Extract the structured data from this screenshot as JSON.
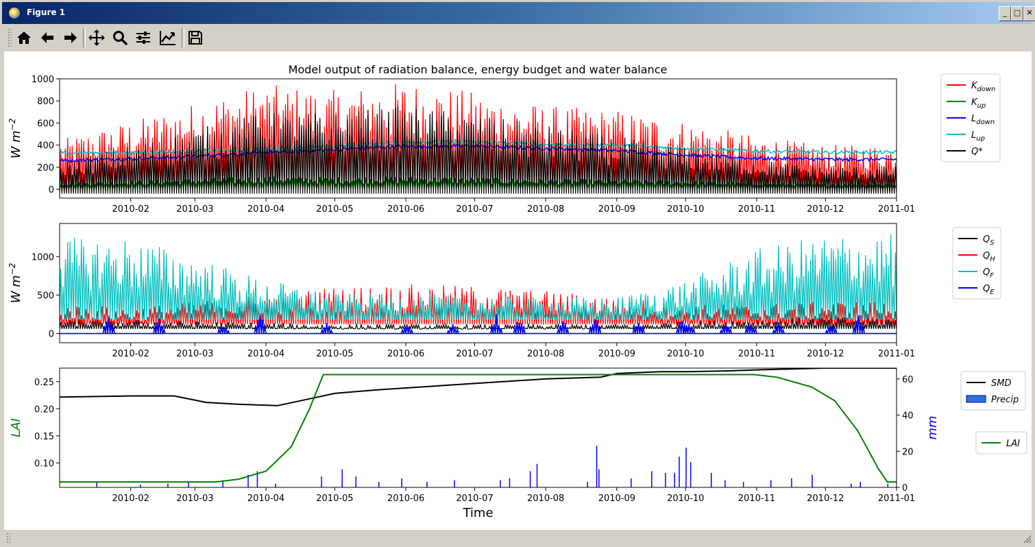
{
  "window": {
    "title": "Figure 1",
    "min_label": "_",
    "max_label": "□",
    "close_label": "✕"
  },
  "toolbar": {
    "buttons": [
      {
        "id": "home",
        "icon": "home-icon"
      },
      {
        "id": "back",
        "icon": "arrow-left-icon"
      },
      {
        "id": "forward",
        "icon": "arrow-right-icon"
      },
      {
        "id": "pan",
        "icon": "move-icon"
      },
      {
        "id": "zoom",
        "icon": "magnifier-icon"
      },
      {
        "id": "subplots",
        "icon": "sliders-icon"
      },
      {
        "id": "axes",
        "icon": "line-chart-icon"
      },
      {
        "id": "save",
        "icon": "floppy-icon"
      }
    ]
  },
  "colors": {
    "red": "#ff0000",
    "green": "#008000",
    "blue": "#0000ff",
    "cyan": "#00bfbf",
    "black": "#000000",
    "precip": "#0000ff",
    "precip_legend": "#2a75d6"
  },
  "chart_data": [
    {
      "type": "line",
      "title": "Model output of radiation balance, energy budget and water balance",
      "ylabel": "W m",
      "ylabel_sup": "−2",
      "ylim": [
        -80,
        1000
      ],
      "yticks": [
        0,
        200,
        400,
        600,
        800,
        1000
      ],
      "xlim": [
        "2010-01-01",
        "2011-01-01"
      ],
      "xticks": [
        "2010-02",
        "2010-03",
        "2010-04",
        "2010-05",
        "2010-06",
        "2010-07",
        "2010-08",
        "2010-09",
        "2010-10",
        "2010-11",
        "2010-12",
        "2011-01"
      ],
      "legend": {
        "placement": "outside-right-top"
      },
      "series": [
        {
          "name": "K",
          "sub": "down",
          "color": "#ff0000",
          "style": "daily-peaks",
          "monthly_peak": [
            450,
            620,
            800,
            950,
            900,
            980,
            880,
            760,
            720,
            620,
            480,
            400
          ],
          "night": 0
        },
        {
          "name": "K",
          "sub": "up",
          "color": "#008000",
          "style": "daily-peaks",
          "monthly_peak": [
            60,
            80,
            100,
            120,
            110,
            120,
            110,
            95,
            90,
            80,
            60,
            50
          ],
          "night": 0
        },
        {
          "name": "L",
          "sub": "down",
          "color": "#0000ff",
          "style": "smooth",
          "monthly_level": [
            260,
            275,
            300,
            330,
            360,
            390,
            390,
            370,
            350,
            310,
            280,
            270
          ]
        },
        {
          "name": "L",
          "sub": "up",
          "color": "#00bfbf",
          "style": "smooth",
          "monthly_level": [
            330,
            330,
            345,
            365,
            390,
            425,
            430,
            405,
            400,
            370,
            345,
            335
          ]
        },
        {
          "name": "Q*",
          "sub": "",
          "color": "#000000",
          "style": "daily-peaks",
          "monthly_peak": [
            250,
            400,
            550,
            700,
            700,
            760,
            680,
            580,
            480,
            380,
            270,
            210
          ],
          "night": -40
        }
      ]
    },
    {
      "type": "line",
      "ylabel": "W m",
      "ylabel_sup": "−2",
      "ylim": [
        -120,
        1430
      ],
      "yticks": [
        0,
        500,
        1000
      ],
      "xlim": [
        "2010-01-01",
        "2011-01-01"
      ],
      "xticks": [
        "2010-02",
        "2010-03",
        "2010-04",
        "2010-05",
        "2010-06",
        "2010-07",
        "2010-08",
        "2010-09",
        "2010-10",
        "2010-11",
        "2010-12",
        "2011-01"
      ],
      "legend": {
        "placement": "outside-right-top"
      },
      "series": [
        {
          "name": "Q",
          "sub": "S",
          "color": "#000000",
          "style": "daily-peaks",
          "monthly_peak": [
            200,
            180,
            160,
            140,
            120,
            120,
            120,
            120,
            130,
            160,
            200,
            220
          ],
          "night": 60
        },
        {
          "name": "Q",
          "sub": "H",
          "color": "#ff0000",
          "style": "daily-peaks",
          "monthly_peak": [
            380,
            340,
            420,
            520,
            610,
            640,
            620,
            560,
            480,
            380,
            380,
            420
          ],
          "night": 120
        },
        {
          "name": "Q",
          "sub": "F",
          "color": "#00bfbf",
          "style": "daily-peaks",
          "monthly_peak": [
            1250,
            1250,
            1000,
            700,
            520,
            520,
            500,
            470,
            480,
            700,
            1100,
            1300
          ],
          "night": 180
        },
        {
          "name": "Q",
          "sub": "E",
          "color": "#0000ff",
          "style": "spiky",
          "spikes": [
            [
              "2010-01-22",
              250
            ],
            [
              "2010-02-13",
              200
            ],
            [
              "2010-03-13",
              130
            ],
            [
              "2010-03-29",
              280
            ],
            [
              "2010-04-27",
              150
            ],
            [
              "2010-06-01",
              140
            ],
            [
              "2010-06-21",
              130
            ],
            [
              "2010-07-10",
              260
            ],
            [
              "2010-07-20",
              230
            ],
            [
              "2010-08-08",
              200
            ],
            [
              "2010-08-22",
              250
            ],
            [
              "2010-09-10",
              200
            ],
            [
              "2010-09-29",
              220
            ],
            [
              "2010-10-02",
              180
            ],
            [
              "2010-10-18",
              160
            ],
            [
              "2010-10-29",
              170
            ],
            [
              "2010-11-10",
              150
            ],
            [
              "2010-12-03",
              140
            ],
            [
              "2010-12-15",
              270
            ]
          ],
          "base": 0
        }
      ]
    },
    {
      "type": "line",
      "xlabel": "Time",
      "ylabel": "LAI",
      "ylabel_right": "mm",
      "ylim": [
        0.055,
        0.275
      ],
      "yticks": [
        0.1,
        0.15,
        0.2,
        0.25
      ],
      "ytick_labels": [
        "0.10",
        "0.15",
        "0.20",
        "0.25"
      ],
      "ylim_right": [
        0,
        66
      ],
      "yticks_right": [
        0,
        20,
        40,
        60
      ],
      "xlim": [
        "2010-01-01",
        "2011-01-01"
      ],
      "xticks": [
        "2010-02",
        "2010-03",
        "2010-04",
        "2010-05",
        "2010-06",
        "2010-07",
        "2010-08",
        "2010-09",
        "2010-10",
        "2010-11",
        "2010-12",
        "2011-01"
      ],
      "legend": {
        "placement": "outside-right"
      },
      "series": [
        {
          "name": "SMD",
          "color": "#000000",
          "axis": "right",
          "points": [
            [
              "2010-01-01",
              50
            ],
            [
              "2010-02-01",
              50.6
            ],
            [
              "2010-02-20",
              50.6
            ],
            [
              "2010-03-06",
              47
            ],
            [
              "2010-03-20",
              46
            ],
            [
              "2010-04-06",
              45.2
            ],
            [
              "2010-04-20",
              49
            ],
            [
              "2010-05-01",
              52
            ],
            [
              "2010-05-20",
              54
            ],
            [
              "2010-06-01",
              55
            ],
            [
              "2010-07-01",
              57.5
            ],
            [
              "2010-08-01",
              60
            ],
            [
              "2010-08-25",
              61
            ],
            [
              "2010-09-01",
              63
            ],
            [
              "2010-09-20",
              64
            ],
            [
              "2010-10-01",
              64
            ],
            [
              "2010-10-20",
              64.5
            ],
            [
              "2010-11-01",
              65
            ],
            [
              "2010-12-01",
              66
            ],
            [
              "2011-01-01",
              66
            ]
          ]
        },
        {
          "name": "Precip",
          "color": "#0000ff",
          "axis": "right",
          "style": "bars",
          "spikes": [
            [
              "2010-01-17",
              3
            ],
            [
              "2010-02-05",
              1.5
            ],
            [
              "2010-02-17",
              2
            ],
            [
              "2010-02-26",
              3
            ],
            [
              "2010-03-13",
              4
            ],
            [
              "2010-03-24",
              7
            ],
            [
              "2010-03-28",
              9
            ],
            [
              "2010-04-05",
              2
            ],
            [
              "2010-04-25",
              6
            ],
            [
              "2010-05-04",
              10
            ],
            [
              "2010-05-10",
              6
            ],
            [
              "2010-05-20",
              3
            ],
            [
              "2010-05-30",
              5
            ],
            [
              "2010-06-10",
              3
            ],
            [
              "2010-06-22",
              4
            ],
            [
              "2010-07-12",
              4
            ],
            [
              "2010-07-16",
              5
            ],
            [
              "2010-07-25",
              9
            ],
            [
              "2010-07-28",
              13
            ],
            [
              "2010-08-19",
              3
            ],
            [
              "2010-08-23",
              23
            ],
            [
              "2010-08-24",
              10
            ],
            [
              "2010-09-07",
              5
            ],
            [
              "2010-09-16",
              9
            ],
            [
              "2010-09-22",
              8
            ],
            [
              "2010-09-26",
              8
            ],
            [
              "2010-09-28",
              17
            ],
            [
              "2010-10-01",
              22
            ],
            [
              "2010-10-03",
              14
            ],
            [
              "2010-10-12",
              8
            ],
            [
              "2010-10-18",
              4
            ],
            [
              "2010-10-26",
              3
            ],
            [
              "2010-11-07",
              4
            ],
            [
              "2010-11-16",
              5
            ],
            [
              "2010-11-25",
              7
            ],
            [
              "2010-12-12",
              2
            ],
            [
              "2010-12-16",
              3
            ],
            [
              "2010-12-28",
              2
            ]
          ]
        },
        {
          "name": "LAI",
          "color": "#008000",
          "axis": "left",
          "points": [
            [
              "2010-01-01",
              0.065
            ],
            [
              "2010-03-10",
              0.065
            ],
            [
              "2010-03-20",
              0.07
            ],
            [
              "2010-04-01",
              0.085
            ],
            [
              "2010-04-12",
              0.13
            ],
            [
              "2010-04-20",
              0.2
            ],
            [
              "2010-04-26",
              0.263
            ],
            [
              "2010-10-31",
              0.263
            ],
            [
              "2010-11-10",
              0.258
            ],
            [
              "2010-11-25",
              0.24
            ],
            [
              "2010-12-05",
              0.215
            ],
            [
              "2010-12-15",
              0.16
            ],
            [
              "2010-12-24",
              0.09
            ],
            [
              "2010-12-28",
              0.065
            ],
            [
              "2011-01-01",
              0.065
            ]
          ]
        }
      ]
    }
  ]
}
